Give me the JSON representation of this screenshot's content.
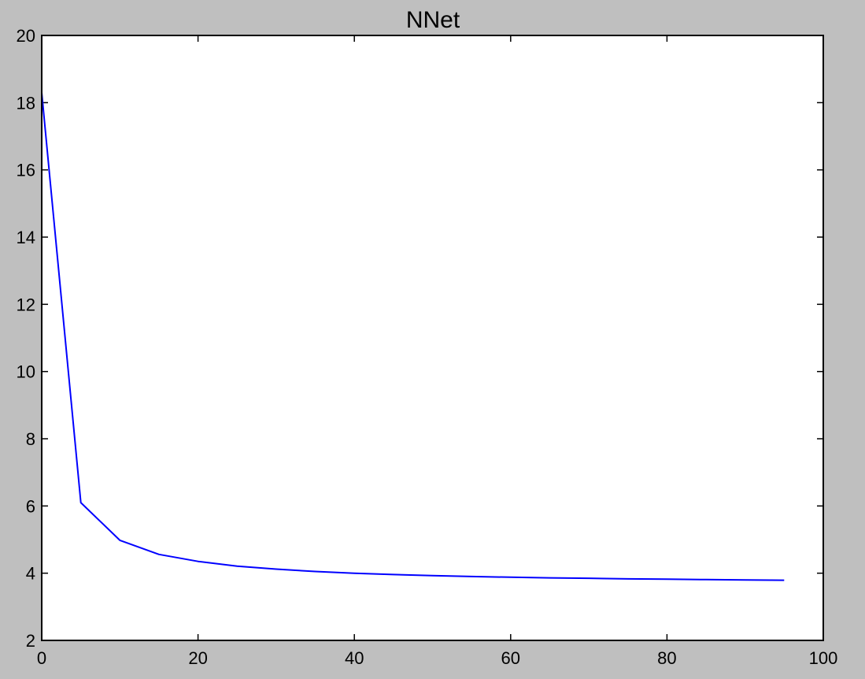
{
  "chart_data": {
    "type": "line",
    "title": "NNet",
    "xlabel": "",
    "ylabel": "",
    "xlim": [
      0,
      100
    ],
    "ylim": [
      2,
      20
    ],
    "xticks": [
      0,
      20,
      40,
      60,
      80,
      100
    ],
    "yticks": [
      2,
      4,
      6,
      8,
      10,
      12,
      14,
      16,
      18,
      20
    ],
    "grid": false,
    "series": [
      {
        "color": "#0000ff",
        "x": [
          0,
          5,
          10,
          15,
          20,
          25,
          30,
          35,
          40,
          45,
          50,
          55,
          60,
          65,
          70,
          75,
          80,
          85,
          90,
          95
        ],
        "y": [
          18.3,
          6.1,
          4.98,
          4.56,
          4.35,
          4.21,
          4.12,
          4.05,
          4.0,
          3.96,
          3.93,
          3.9,
          3.88,
          3.86,
          3.85,
          3.83,
          3.82,
          3.81,
          3.8,
          3.79
        ]
      }
    ]
  }
}
